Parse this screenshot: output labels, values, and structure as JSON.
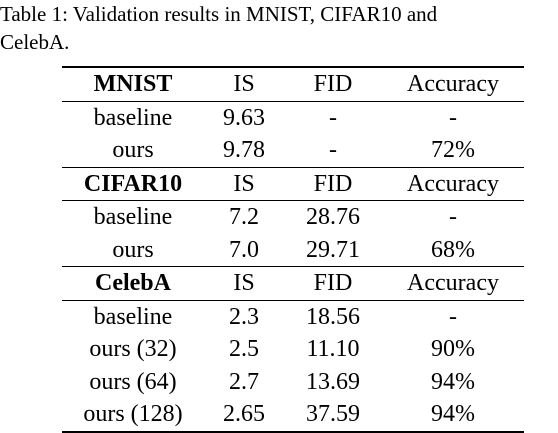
{
  "caption": {
    "line1": "Table 1:  Validation results in MNIST, CIFAR10 and",
    "line2": "CelebA."
  },
  "table": {
    "sections": [
      {
        "header": [
          "MNIST",
          "IS",
          "FID",
          "Accuracy"
        ],
        "rows": [
          [
            "baseline",
            "9.63",
            "-",
            "-"
          ],
          [
            "ours",
            "9.78",
            "-",
            "72%"
          ]
        ]
      },
      {
        "header": [
          "CIFAR10",
          "IS",
          "FID",
          "Accuracy"
        ],
        "rows": [
          [
            "baseline",
            "7.2",
            "28.76",
            "-"
          ],
          [
            "ours",
            "7.0",
            "29.71",
            "68%"
          ]
        ]
      },
      {
        "header": [
          "CelebA",
          "IS",
          "FID",
          "Accuracy"
        ],
        "rows": [
          [
            "baseline",
            "2.3",
            "18.56",
            "-"
          ],
          [
            "ours (32)",
            "2.5",
            "11.10",
            "90%"
          ],
          [
            "ours (64)",
            "2.7",
            "13.69",
            "94%"
          ],
          [
            "ours (128)",
            "2.65",
            "37.59",
            "94%"
          ]
        ]
      }
    ]
  }
}
